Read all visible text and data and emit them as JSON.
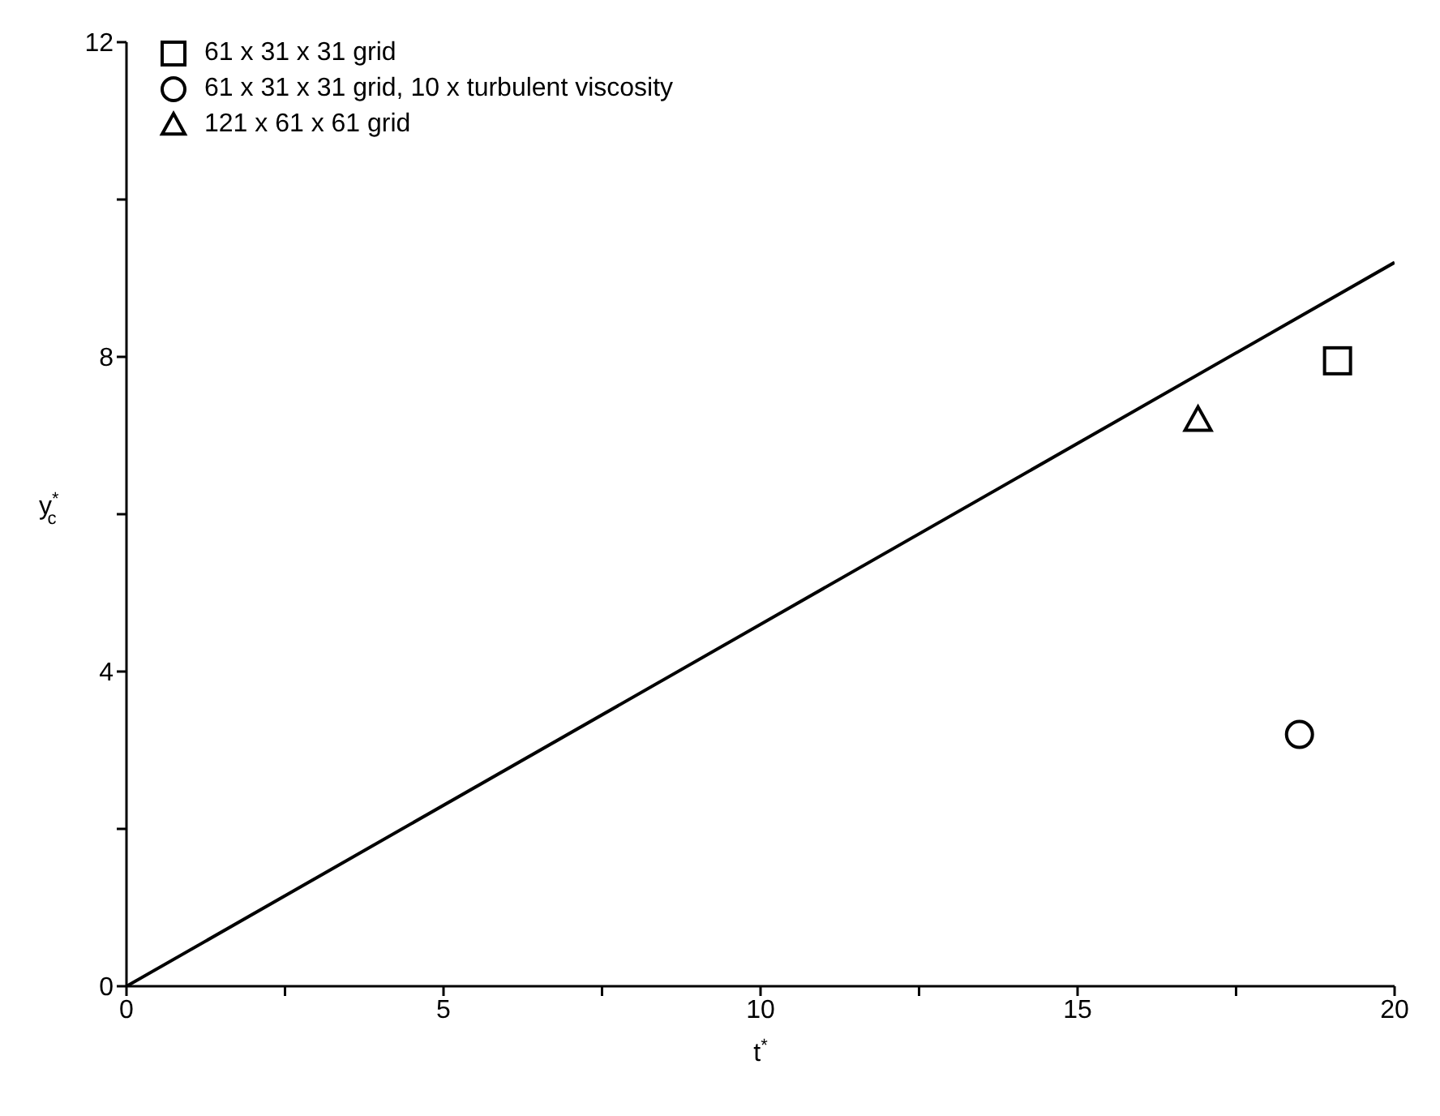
{
  "chart_data": {
    "type": "scatter",
    "xlabel": "t$^{*}$",
    "ylabel": "y$^{*}$$_{c}$",
    "xlim": [
      0,
      20
    ],
    "xticks": [
      0,
      {
        "value": 2.5,
        "label": null
      },
      5,
      {
        "value": 7.5,
        "label": null
      },
      10,
      {
        "value": 12.5,
        "label": null
      },
      15,
      {
        "value": 17.5,
        "label": null
      },
      20
    ],
    "ylim": [
      0,
      12
    ],
    "yticks": [
      0,
      {
        "value": 2,
        "label": null
      },
      4,
      {
        "value": 6,
        "label": null
      },
      8,
      {
        "value": 10,
        "label": null
      },
      12
    ],
    "legend": "top left",
    "series": [
      {
        "type": "line",
        "color": "#000000",
        "x": [
          0,
          20
        ],
        "values": [
          0,
          9.2
        ],
        "marker": "none",
        "line_style": "solid"
      },
      {
        "name": "61 x 31 x 31 grid",
        "color": "#000000",
        "x": [
          19.1
        ],
        "values": [
          7.95
        ],
        "marker": "square"
      },
      {
        "name": "61 x 31 x 31 grid, 10 x turbulent viscosity",
        "color": "#000000",
        "x": [
          18.5
        ],
        "values": [
          3.2
        ],
        "marker": "circle"
      },
      {
        "name": "121 x 61 x 61 grid",
        "color": "#000000",
        "x": [
          16.9
        ],
        "values": [
          7.2
        ],
        "marker": "triangle"
      }
    ]
  }
}
